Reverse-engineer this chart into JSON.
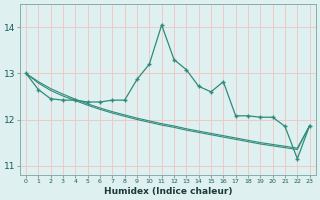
{
  "xlabel": "Humidex (Indice chaleur)",
  "ylabel": "",
  "bg_color": "#dff0f0",
  "grid_color": "#f0c8c8",
  "line_color": "#2e8b7a",
  "x_values": [
    0,
    1,
    2,
    3,
    4,
    5,
    6,
    7,
    8,
    9,
    10,
    11,
    12,
    13,
    14,
    15,
    16,
    17,
    18,
    19,
    20,
    21,
    22,
    23
  ],
  "line1_y": [
    13.0,
    12.65,
    12.45,
    12.42,
    12.42,
    12.38,
    12.38,
    12.42,
    12.42,
    12.87,
    13.2,
    14.05,
    13.3,
    13.08,
    12.72,
    12.6,
    12.82,
    12.08,
    12.08,
    12.05,
    12.05,
    11.85,
    11.15,
    11.87
  ],
  "line2_y": [
    13.0,
    12.82,
    12.67,
    12.55,
    12.44,
    12.34,
    12.25,
    12.17,
    12.1,
    12.03,
    11.97,
    11.91,
    11.86,
    11.8,
    11.75,
    11.7,
    11.65,
    11.6,
    11.55,
    11.5,
    11.46,
    11.42,
    11.38,
    11.87
  ],
  "line3_y": [
    13.0,
    12.79,
    12.63,
    12.51,
    12.41,
    12.31,
    12.22,
    12.14,
    12.07,
    12.0,
    11.94,
    11.88,
    11.83,
    11.77,
    11.72,
    11.67,
    11.62,
    11.57,
    11.52,
    11.47,
    11.43,
    11.39,
    11.35,
    11.87
  ],
  "ylim": [
    10.8,
    14.5
  ],
  "yticks": [
    11,
    12,
    13,
    14
  ],
  "xticks": [
    0,
    1,
    2,
    3,
    4,
    5,
    6,
    7,
    8,
    9,
    10,
    11,
    12,
    13,
    14,
    15,
    16,
    17,
    18,
    19,
    20,
    21,
    22,
    23
  ]
}
